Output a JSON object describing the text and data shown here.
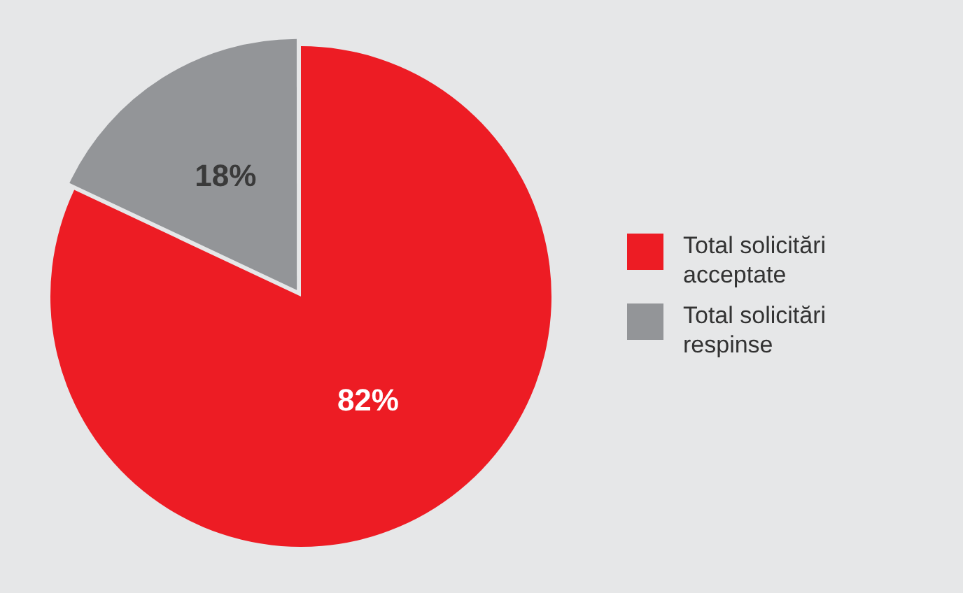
{
  "chart_data": {
    "type": "pie",
    "categories": [
      "Total solicitări acceptate",
      "Total solicitări respinse"
    ],
    "values": [
      82,
      18
    ],
    "colors": [
      "#ed1c24",
      "#939598"
    ],
    "value_labels": [
      "82%",
      "18%"
    ],
    "legend": "right"
  }
}
